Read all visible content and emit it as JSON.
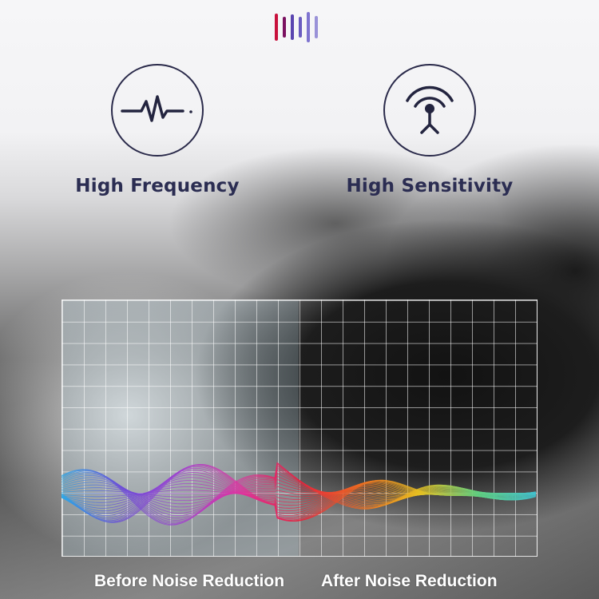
{
  "logo": {
    "bar_colors": [
      "#c8103c",
      "#7a1060",
      "#5a45b0",
      "#6a5cc0",
      "#7f74d0",
      "#9a92d8"
    ]
  },
  "features": [
    {
      "icon": "heartbeat-pulse-icon",
      "label": "High Frequency"
    },
    {
      "icon": "antenna-signal-icon",
      "label": "High Sensitivity"
    }
  ],
  "comparison": {
    "before_label": "Before Noise Reduction",
    "after_label": "After Noise Reduction",
    "before_colors": [
      "#2aa8e8",
      "#6a4ad8",
      "#a040d0",
      "#e030a0"
    ],
    "after_colors": [
      "#e8203c",
      "#f06a20",
      "#e8c020",
      "#60d080",
      "#40c0d0"
    ]
  },
  "theme": {
    "heading_color": "#2b2d52"
  }
}
